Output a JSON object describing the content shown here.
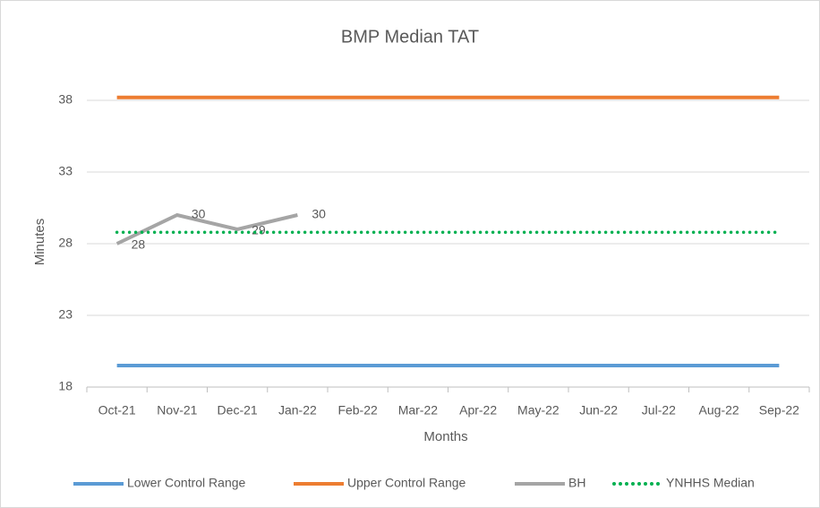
{
  "chart_data": {
    "type": "line",
    "title": "BMP Median TAT",
    "x_label": "Months",
    "y_label": "Minutes",
    "categories": [
      "Oct-21",
      "Nov-21",
      "Dec-21",
      "Jan-22",
      "Feb-22",
      "Mar-22",
      "Apr-22",
      "May-22",
      "Jun-22",
      "Jul-22",
      "Aug-22",
      "Sep-22"
    ],
    "series": [
      {
        "name": "Lower Control Range",
        "color": "#5b9bd5",
        "style": "solid",
        "values": [
          19.5,
          19.5,
          19.5,
          19.5,
          19.5,
          19.5,
          19.5,
          19.5,
          19.5,
          19.5,
          19.5,
          19.5
        ]
      },
      {
        "name": "Upper Control Range",
        "color": "#ed7d31",
        "style": "solid",
        "values": [
          38.2,
          38.2,
          38.2,
          38.2,
          38.2,
          38.2,
          38.2,
          38.2,
          38.2,
          38.2,
          38.2,
          38.2
        ]
      },
      {
        "name": "BH",
        "color": "#a5a5a5",
        "style": "solid",
        "data_labels": true,
        "values": [
          28,
          30,
          29,
          30,
          null,
          null,
          null,
          null,
          null,
          null,
          null,
          null
        ]
      },
      {
        "name": "YNHHS Median",
        "color": "#00b050",
        "style": "dotted",
        "values": [
          28.8,
          28.8,
          28.8,
          28.8,
          28.8,
          28.8,
          28.8,
          28.8,
          28.8,
          28.8,
          28.8,
          28.8
        ]
      }
    ],
    "ylim": [
      18,
      40
    ],
    "yticks": [
      18,
      23,
      28,
      33,
      38
    ],
    "grid": true,
    "legend": "bottom"
  }
}
